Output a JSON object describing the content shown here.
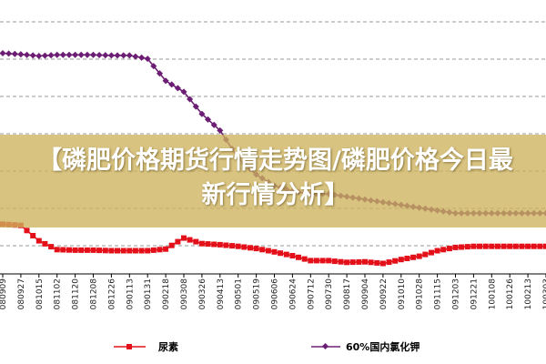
{
  "chart_data": {
    "type": "line",
    "title": "",
    "xlabel": "",
    "ylabel": "",
    "x": [
      "080909",
      "080927",
      "081015",
      "081102",
      "081120",
      "081208",
      "081226",
      "090113",
      "090131",
      "090218",
      "090308",
      "090326",
      "090413",
      "090501",
      "090519",
      "090606",
      "090624",
      "090712",
      "090730",
      "090817",
      "090904",
      "090922",
      "091010",
      "091028",
      "091115",
      "091203",
      "091221",
      "100108",
      "100126",
      "100213",
      "100303"
    ],
    "series": [
      {
        "name": "尿素",
        "color": "#e3101a",
        "marker": "square",
        "values": [
          2300,
          2280,
          2000,
          1840,
          1830,
          1830,
          1820,
          1820,
          1820,
          1850,
          2050,
          1950,
          1930,
          1900,
          1860,
          1800,
          1730,
          1640,
          1640,
          1610,
          1620,
          1590,
          1660,
          1720,
          1820,
          1880,
          1900,
          1900,
          1900,
          1900,
          1900
        ]
      },
      {
        "name": "60%国内氯化钾",
        "color": "#6b1e73",
        "marker": "diamond",
        "values": [
          5400,
          5380,
          5350,
          5370,
          5370,
          5370,
          5360,
          5360,
          5300,
          4900,
          4700,
          4300,
          4000,
          3500,
          3200,
          3000,
          2900,
          2850,
          2850,
          2800,
          2750,
          2700,
          2650,
          2600,
          2550,
          2500,
          2500,
          2500,
          2500,
          2500,
          2500
        ]
      }
    ],
    "ylim": [
      1400,
      6200
    ],
    "grid": true,
    "legend": "bottom"
  },
  "overlay": {
    "title": "【磷肥价格期货行情走势图/磷肥价格今日最新行情分析】"
  }
}
